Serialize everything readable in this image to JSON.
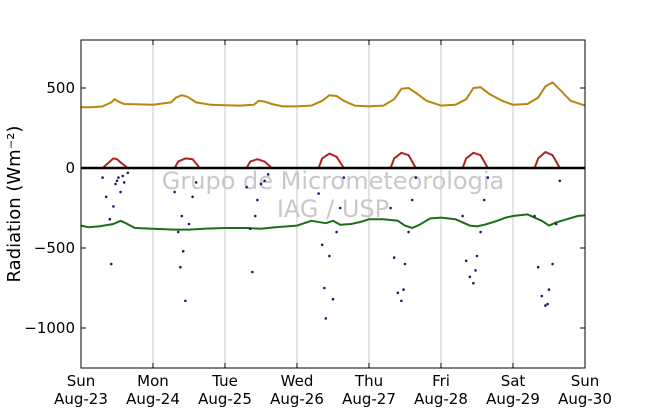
{
  "chart_data": {
    "type": "line",
    "title": "",
    "xlabel": "",
    "ylabel": "Radiation (Wm⁻²)",
    "ylim": [
      -1250,
      800
    ],
    "yticks": [
      500,
      0,
      -500,
      -1000
    ],
    "xlim": [
      0,
      7
    ],
    "x_ticks": [
      {
        "x": 0,
        "day": "Sun",
        "date": "Aug-23"
      },
      {
        "x": 1,
        "day": "Mon",
        "date": "Aug-24"
      },
      {
        "x": 2,
        "day": "Tue",
        "date": "Aug-25"
      },
      {
        "x": 3,
        "day": "Wed",
        "date": "Aug-26"
      },
      {
        "x": 4,
        "day": "Thu",
        "date": "Aug-27"
      },
      {
        "x": 5,
        "day": "Fri",
        "date": "Aug-28"
      },
      {
        "x": 6,
        "day": "Sat",
        "date": "Aug-29"
      },
      {
        "x": 7,
        "day": "Sun",
        "date": "Aug-30"
      }
    ],
    "grid": "vertical",
    "watermark": [
      "Grupo de Micrometeorologia",
      "IAG / USP"
    ],
    "series": [
      {
        "color": "#b8860b",
        "style": "line",
        "x": [
          0,
          0.15,
          0.3,
          0.42,
          0.47,
          0.52,
          0.6,
          0.75,
          1.0,
          1.25,
          1.32,
          1.4,
          1.48,
          1.6,
          1.8,
          2.0,
          2.2,
          2.4,
          2.47,
          2.55,
          2.65,
          2.8,
          3.0,
          3.2,
          3.35,
          3.45,
          3.55,
          3.65,
          3.8,
          4.0,
          4.2,
          4.35,
          4.45,
          4.55,
          4.65,
          4.8,
          5.0,
          5.2,
          5.35,
          5.45,
          5.55,
          5.68,
          5.85,
          6.0,
          6.2,
          6.35,
          6.45,
          6.55,
          6.65,
          6.8,
          7.0
        ],
        "values": [
          380,
          380,
          385,
          410,
          430,
          415,
          400,
          398,
          395,
          410,
          440,
          455,
          445,
          410,
          395,
          392,
          390,
          395,
          420,
          415,
          400,
          385,
          385,
          390,
          420,
          455,
          450,
          420,
          390,
          385,
          390,
          430,
          495,
          500,
          470,
          420,
          390,
          395,
          430,
          500,
          505,
          460,
          420,
          395,
          400,
          440,
          510,
          535,
          490,
          420,
          390
        ]
      },
      {
        "color": "#b22222",
        "style": "line",
        "x": [
          0,
          0.3,
          0.4,
          0.45,
          0.5,
          0.55,
          0.65,
          1.0,
          1.3,
          1.35,
          1.45,
          1.55,
          1.65,
          2.0,
          2.3,
          2.35,
          2.45,
          2.55,
          2.65,
          3.0,
          3.3,
          3.35,
          3.45,
          3.55,
          3.65,
          4.0,
          4.3,
          4.35,
          4.45,
          4.55,
          4.65,
          5.0,
          5.3,
          5.35,
          5.45,
          5.55,
          5.65,
          6.0,
          6.3,
          6.35,
          6.45,
          6.55,
          6.65,
          7.0
        ],
        "values": [
          0,
          0,
          40,
          60,
          55,
          35,
          0,
          0,
          0,
          40,
          60,
          55,
          0,
          0,
          0,
          40,
          55,
          40,
          0,
          0,
          0,
          60,
          90,
          70,
          0,
          0,
          0,
          60,
          95,
          80,
          0,
          0,
          0,
          60,
          95,
          80,
          0,
          0,
          0,
          60,
          100,
          80,
          0,
          0
        ]
      },
      {
        "color": "#1a6e1a",
        "style": "line",
        "x": [
          0,
          0.1,
          0.25,
          0.45,
          0.55,
          0.6,
          0.75,
          1.0,
          1.3,
          1.5,
          1.7,
          2.0,
          2.3,
          2.5,
          2.7,
          3.0,
          3.2,
          3.4,
          3.5,
          3.6,
          3.75,
          3.9,
          4.0,
          4.2,
          4.4,
          4.5,
          4.6,
          4.7,
          4.85,
          5.0,
          5.2,
          5.4,
          5.5,
          5.6,
          5.75,
          5.9,
          6.0,
          6.2,
          6.4,
          6.5,
          6.6,
          6.75,
          6.9,
          7.0
        ],
        "values": [
          -360,
          -370,
          -365,
          -350,
          -330,
          -340,
          -375,
          -380,
          -385,
          -385,
          -380,
          -375,
          -375,
          -380,
          -370,
          -360,
          -330,
          -345,
          -330,
          -355,
          -350,
          -335,
          -320,
          -320,
          -330,
          -360,
          -375,
          -355,
          -315,
          -310,
          -320,
          -360,
          -365,
          -355,
          -335,
          -310,
          -300,
          -290,
          -330,
          -360,
          -340,
          -320,
          -300,
          -295
        ]
      },
      {
        "color": "#000000",
        "style": "line",
        "x": [
          0,
          7
        ],
        "values": [
          0,
          0
        ]
      },
      {
        "color": "#191970",
        "style": "dots",
        "x": [
          0.3,
          0.35,
          0.4,
          0.42,
          0.45,
          0.48,
          0.5,
          0.52,
          0.55,
          0.58,
          0.6,
          0.65,
          1.3,
          1.35,
          1.38,
          1.4,
          1.42,
          1.45,
          1.5,
          1.55,
          1.6,
          2.3,
          2.35,
          2.38,
          2.42,
          2.45,
          2.5,
          2.55,
          2.6,
          3.3,
          3.35,
          3.38,
          3.4,
          3.45,
          3.5,
          3.55,
          3.6,
          3.65,
          4.3,
          4.35,
          4.4,
          4.45,
          4.48,
          4.5,
          4.55,
          4.6,
          4.65,
          5.3,
          5.35,
          5.4,
          5.45,
          5.48,
          5.5,
          5.55,
          5.6,
          5.65,
          6.3,
          6.35,
          6.4,
          6.45,
          6.48,
          6.5,
          6.55,
          6.6,
          6.65
        ],
        "values": [
          -60,
          -180,
          -320,
          -600,
          -240,
          -100,
          -80,
          -60,
          -150,
          -50,
          -90,
          -30,
          -150,
          -400,
          -620,
          -300,
          -520,
          -830,
          -350,
          -180,
          -90,
          -120,
          -380,
          -650,
          -300,
          -200,
          -100,
          -80,
          -40,
          -160,
          -480,
          -750,
          -940,
          -550,
          -820,
          -400,
          -250,
          -60,
          -250,
          -560,
          -780,
          -830,
          -760,
          -600,
          -400,
          -200,
          -60,
          -300,
          -580,
          -680,
          -720,
          -640,
          -550,
          -400,
          -200,
          -60,
          -300,
          -620,
          -800,
          -860,
          -850,
          -760,
          -600,
          -350,
          -80
        ]
      }
    ]
  }
}
